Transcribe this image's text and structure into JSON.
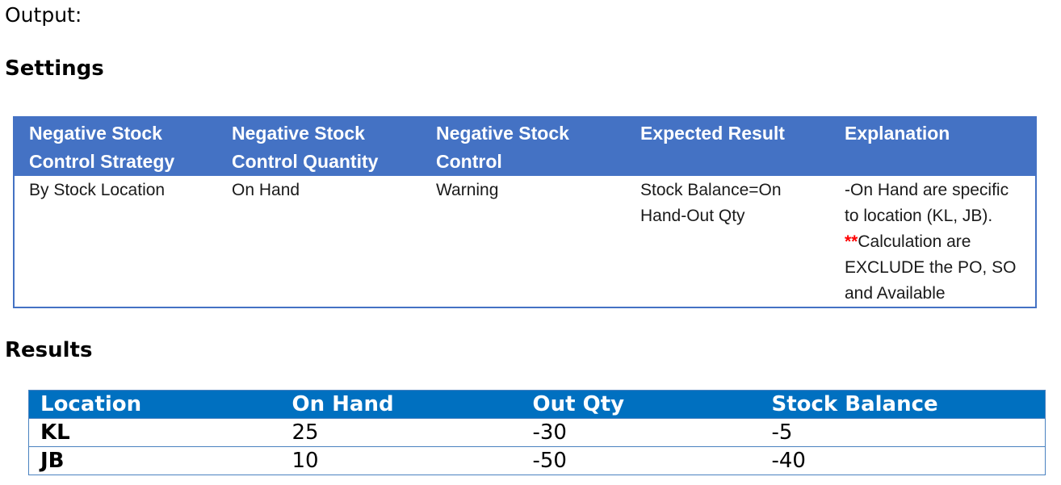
{
  "output_label": "Output:",
  "settings_heading": "Settings",
  "results_heading": "Results",
  "settings_table": {
    "headers": [
      "Negative Stock Control Strategy",
      "Negative Stock Control Quantity",
      "Negative Stock Control",
      "Expected Result",
      "Explanation"
    ],
    "row": {
      "strategy": "By Stock Location",
      "quantity": "On Hand",
      "control": "Warning",
      "expected": "Stock Balance=On Hand-Out Qty",
      "explanation_part1": "-On Hand are specific to location (KL, JB).",
      "explanation_stars": "**",
      "explanation_part2": "Calculation are EXCLUDE the PO, SO and Available"
    },
    "header_color": "#4472c4"
  },
  "results_table": {
    "headers": [
      "Location",
      "On Hand",
      "Out Qty",
      "Stock Balance"
    ],
    "rows": [
      {
        "location": "KL",
        "on_hand": "25",
        "out_qty": "-30",
        "stock_balance": "-5"
      },
      {
        "location": "JB",
        "on_hand": "10",
        "out_qty": "-50",
        "stock_balance": "-40"
      }
    ],
    "header_color": "#0070c0"
  }
}
